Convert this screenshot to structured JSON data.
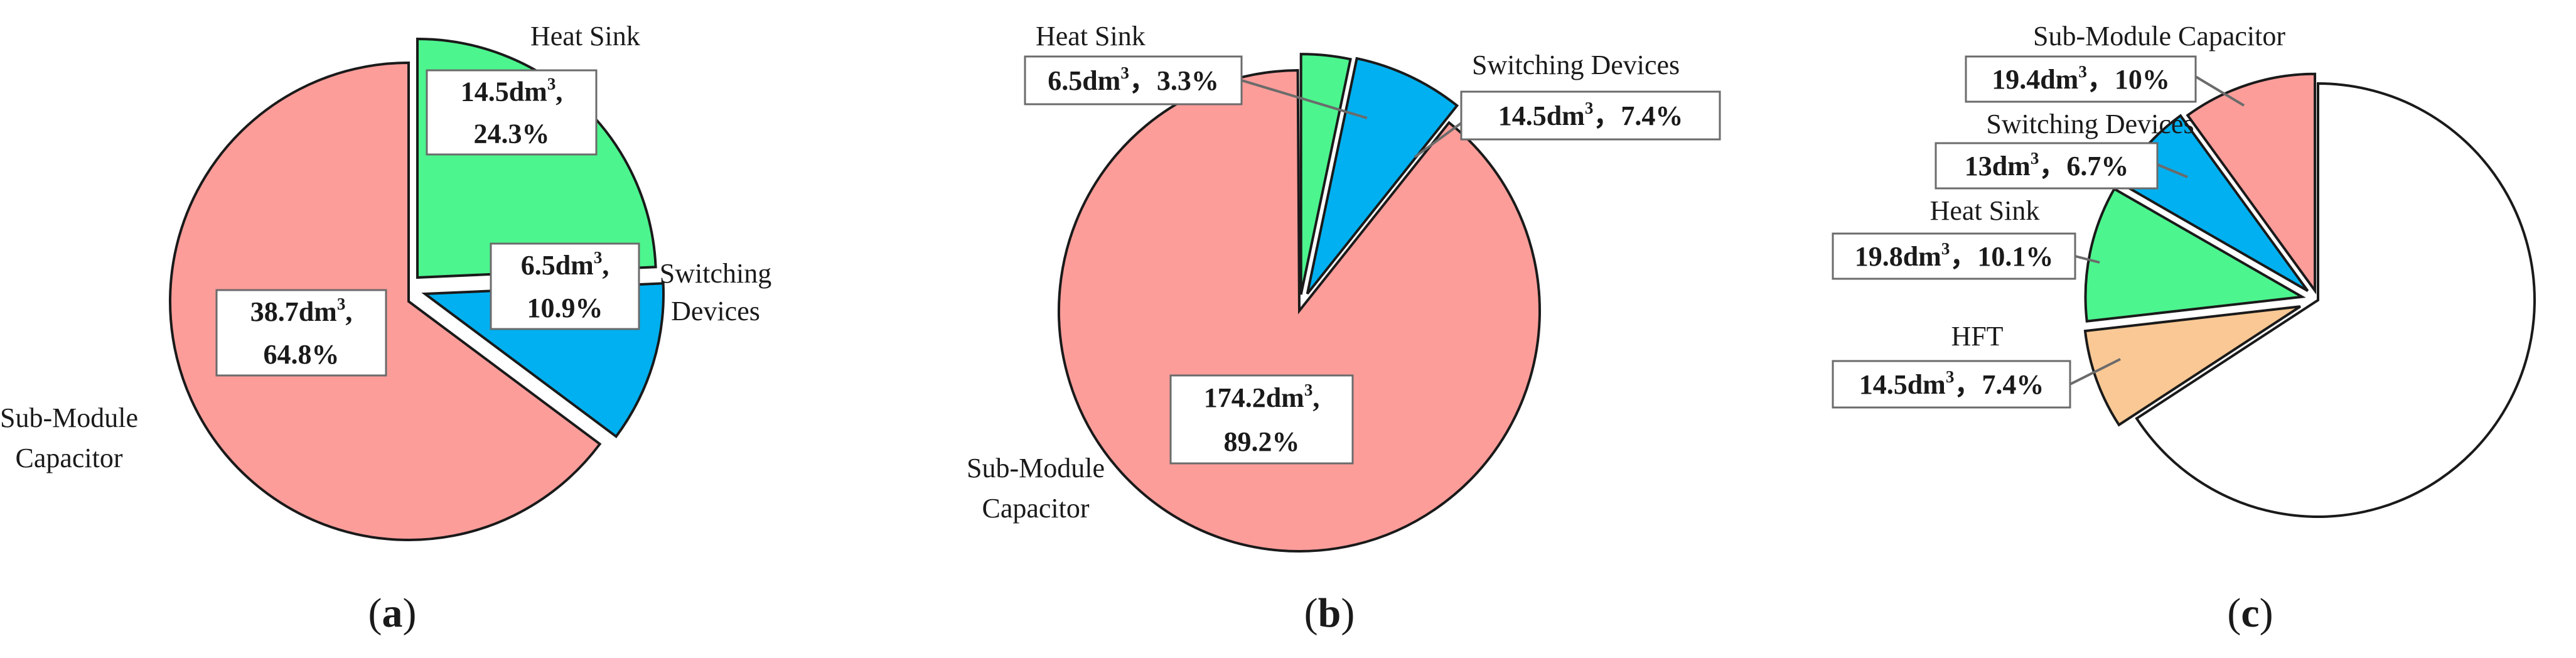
{
  "colors": {
    "capacitor": "#fc9d9a",
    "heat_sink": "#4cf58e",
    "switching": "#00b0f0",
    "hft": "#f9c894",
    "remainder": "#ffffff",
    "outline": "#1a1a1a",
    "label_box_border": "#6b6b6b",
    "leader": "#6b6b6b"
  },
  "chart_data": [
    {
      "type": "pie",
      "caption_letter": "a",
      "slices": [
        {
          "category": "Heat Sink",
          "volume_dm3": 14.5,
          "percent": 24.3,
          "color_key": "heat_sink",
          "exploded": false,
          "label_lines": [
            "Heat Sink"
          ],
          "value_lines": [
            "14.5dm",
            "3",
            ",",
            "24.3%"
          ]
        },
        {
          "category": "Switching Devices",
          "volume_dm3": 6.5,
          "percent": 10.9,
          "color_key": "switching",
          "exploded": false,
          "label_lines": [
            "Switching",
            "Devices"
          ],
          "value_lines": [
            "6.5dm",
            "3",
            ",",
            "10.9%"
          ]
        },
        {
          "category": "Sub-Module Capacitor",
          "volume_dm3": 38.7,
          "percent": 64.8,
          "color_key": "capacitor",
          "exploded": true,
          "label_lines": [
            "Sub-Module",
            "Capacitor"
          ],
          "value_lines": [
            "38.7dm",
            "3",
            ",",
            "64.8%"
          ]
        }
      ]
    },
    {
      "type": "pie",
      "caption_letter": "b",
      "slices": [
        {
          "category": "Heat Sink",
          "volume_dm3": 6.5,
          "percent": 3.3,
          "color_key": "heat_sink",
          "exploded": true,
          "label_lines": [
            "Heat Sink"
          ],
          "value_lines": [
            "6.5dm",
            "3",
            "，",
            "3.3%"
          ]
        },
        {
          "category": "Switching Devices",
          "volume_dm3": 14.5,
          "percent": 7.4,
          "color_key": "switching",
          "exploded": true,
          "label_lines": [
            "Switching Devices"
          ],
          "value_lines": [
            "14.5dm",
            "3",
            "，",
            "7.4%"
          ]
        },
        {
          "category": "Sub-Module Capacitor",
          "volume_dm3": 174.2,
          "percent": 89.2,
          "color_key": "capacitor",
          "exploded": false,
          "label_lines": [
            "Sub-Module",
            "Capacitor"
          ],
          "value_lines": [
            "174.2dm",
            "3",
            ",",
            "89.2%"
          ]
        }
      ]
    },
    {
      "type": "pie",
      "caption_letter": "c",
      "slices": [
        {
          "category": "Sub-Module Capacitor",
          "volume_dm3": 19.4,
          "percent": 10,
          "color_key": "capacitor",
          "exploded": true,
          "label_lines": [
            "Sub-Module Capacitor"
          ],
          "value_lines": [
            "19.4dm",
            "3",
            "，",
            "10%"
          ]
        },
        {
          "category": "Switching Devices",
          "volume_dm3": 13,
          "percent": 6.7,
          "color_key": "switching",
          "exploded": true,
          "label_lines": [
            "Switching Devices"
          ],
          "value_lines": [
            "13dm",
            "3",
            "，",
            "6.7%"
          ]
        },
        {
          "category": "Heat Sink",
          "volume_dm3": 19.8,
          "percent": 10.1,
          "color_key": "heat_sink",
          "exploded": true,
          "label_lines": [
            "Heat Sink"
          ],
          "value_lines": [
            "19.8dm",
            "3",
            "，",
            "10.1%"
          ]
        },
        {
          "category": "HFT",
          "volume_dm3": 14.5,
          "percent": 7.4,
          "color_key": "hft",
          "exploded": true,
          "label_lines": [
            "HFT"
          ],
          "value_lines": [
            "14.5dm",
            "3",
            "，",
            "7.4%"
          ]
        },
        {
          "category": "",
          "volume_dm3": null,
          "percent": 65.8,
          "color_key": "remainder",
          "exploded": false,
          "label_lines": [],
          "value_lines": []
        }
      ]
    }
  ]
}
